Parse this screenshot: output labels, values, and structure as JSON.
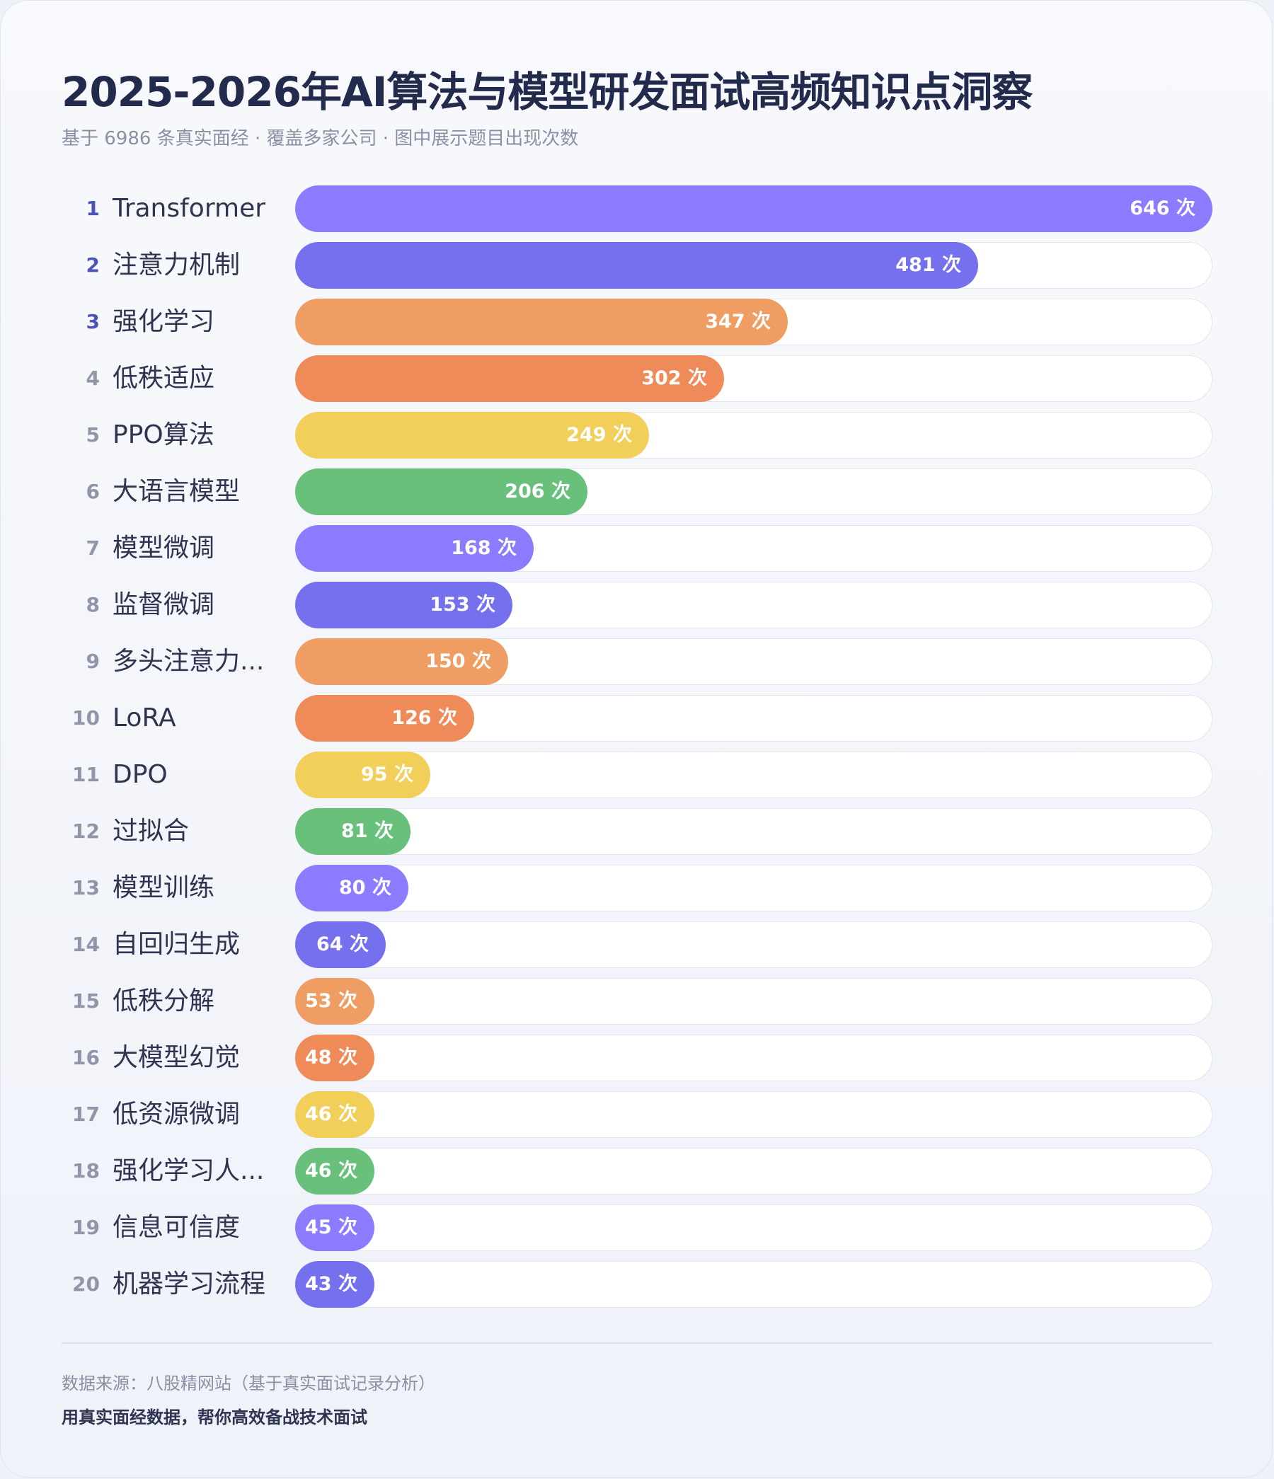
{
  "title": "2025-2026年AI算法与模型研发面试高频知识点洞察",
  "subtitle": "基于 6986 条真实面经 · 覆盖多家公司 · 图中展示题目出现次数",
  "footer": {
    "source": "数据来源：八股精网站（基于真实面试记录分析）",
    "slogan": "用真实面经数据，帮你高效备战技术面试"
  },
  "unit": "次",
  "colors": {
    "palette": [
      "#8b7bff",
      "#7570ee",
      "#ef9d62",
      "#ee8b58",
      "#f1cf58",
      "#68c07a"
    ],
    "rank_top": "#4b55b8",
    "rank_other": "#9096a8"
  },
  "chart_data": {
    "type": "bar",
    "orientation": "horizontal",
    "title": "2025-2026年AI算法与模型研发面试高频知识点洞察",
    "xlim": [
      0,
      646
    ],
    "grid": false,
    "categories": [
      "Transformer",
      "注意力机制",
      "强化学习",
      "低秩适应",
      "PPO算法",
      "大语言模型",
      "模型微调",
      "监督微调",
      "多头注意力...",
      "LoRA",
      "DPO",
      "过拟合",
      "模型训练",
      "自回归生成",
      "低秩分解",
      "大模型幻觉",
      "低资源微调",
      "强化学习人...",
      "信息可信度",
      "机器学习流程"
    ],
    "ranks": [
      "1",
      "2",
      "3",
      "4",
      "5",
      "6",
      "7",
      "8",
      "9",
      "10",
      "11",
      "12",
      "13",
      "14",
      "15",
      "16",
      "17",
      "18",
      "19",
      "20"
    ],
    "values": [
      646,
      481,
      347,
      302,
      249,
      206,
      168,
      153,
      150,
      126,
      95,
      81,
      80,
      64,
      53,
      48,
      46,
      46,
      45,
      43
    ],
    "value_labels": [
      "646 次",
      "481 次",
      "347 次",
      "302 次",
      "249 次",
      "206 次",
      "168 次",
      "153 次",
      "150 次",
      "126 次",
      "95 次",
      "81 次",
      "80 次",
      "64 次",
      "53 次",
      "48 次",
      "46 次",
      "46 次",
      "45 次",
      "43 次"
    ]
  }
}
